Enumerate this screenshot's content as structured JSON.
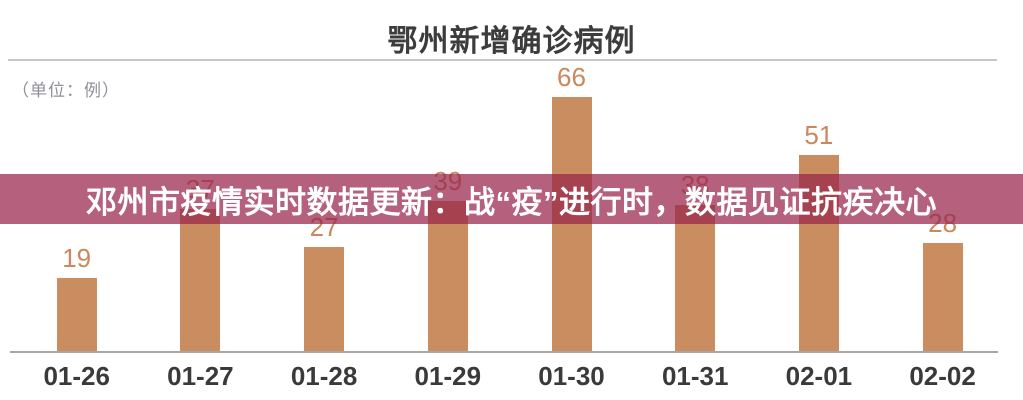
{
  "page": {
    "title": "鄂州新增确诊病例",
    "unit_label": "（单位：例）"
  },
  "banner": {
    "text": "邓州市疫情实时数据更新：战“疫”进行时，数据见证抗疾决心"
  },
  "chart_data": {
    "type": "bar",
    "title": "鄂州新增确诊病例",
    "unit": "（单位：例）",
    "categories": [
      "01-26",
      "01-27",
      "01-28",
      "01-29",
      "01-30",
      "01-31",
      "02-01",
      "02-02"
    ],
    "values": [
      19,
      37,
      27,
      39,
      66,
      38,
      51,
      28
    ],
    "ylim": [
      0,
      70
    ],
    "grid": false,
    "legend": false,
    "data_labels": true
  },
  "colors": {
    "bar": "#c98d5f",
    "value_label": "#c9885d",
    "banner_bg": "rgba(154, 37, 76, 0.73)",
    "banner_text": "#ffffff",
    "title_text": "#3c3c3c",
    "date_label": "#3a3a3a",
    "unit_label": "#8f8f9a",
    "axis_line": "#a6a6a6",
    "divider_line": "#c8c8cc"
  }
}
